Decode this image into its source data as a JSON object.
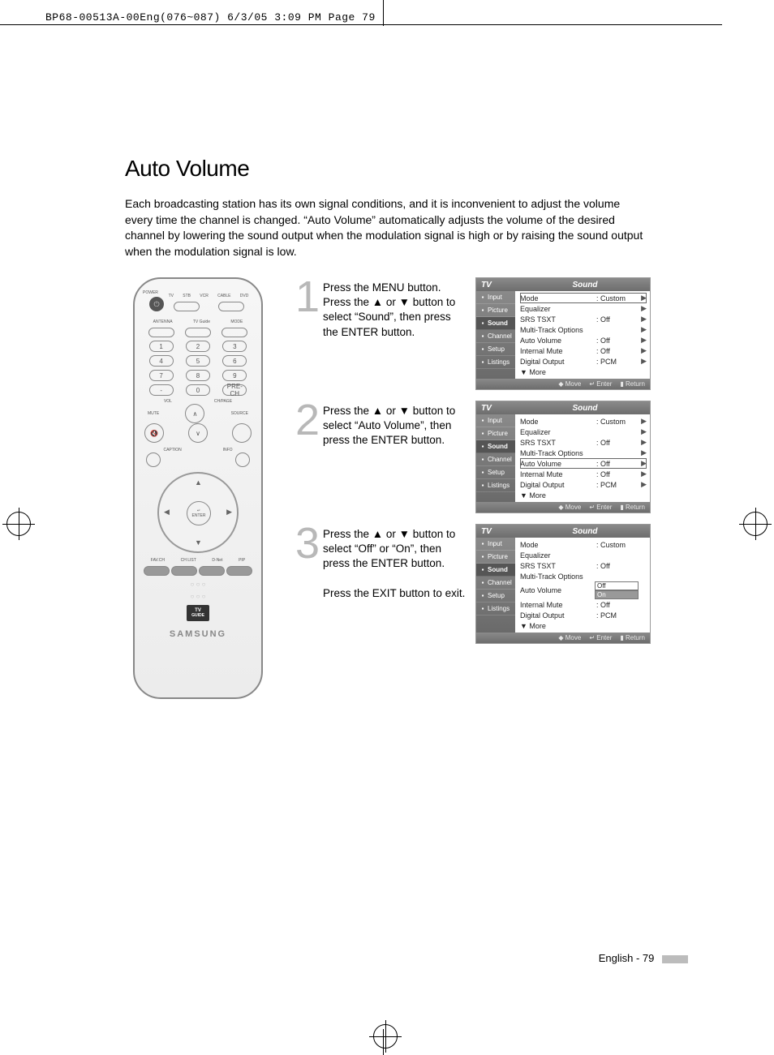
{
  "slug": "BP68-00513A-00Eng(076~087)  6/3/05  3:09 PM  Page 79",
  "title": "Auto Volume",
  "intro": "Each broadcasting station has its own signal conditions, and it is inconvenient to adjust the volume every time the channel is changed. “Auto Volume” automatically adjusts the volume of the desired channel by lowering the sound output when the modulation signal is high or by raising the sound output when the modulation signal is low.",
  "steps": [
    {
      "num": "1",
      "text": "Press the MENU button.\nPress the ▲ or ▼ button to select “Sound”, then press the ENTER button."
    },
    {
      "num": "2",
      "text": "Press the ▲ or ▼ button to select “Auto Volume”, then press the ENTER button."
    },
    {
      "num": "3",
      "text": "Press the ▲ or ▼ button to select “Off” or “On”, then press the ENTER button.\n\nPress the EXIT button to exit."
    }
  ],
  "osd": {
    "header_tv": "TV",
    "header_title": "Sound",
    "side": [
      "Input",
      "Picture",
      "Sound",
      "Channel",
      "Setup",
      "Listings"
    ],
    "side_selected": "Sound",
    "footer": {
      "move": "Move",
      "enter": "Enter",
      "return": "Return"
    },
    "screens": [
      {
        "highlight_row": "Mode",
        "rows": [
          {
            "k": "Mode",
            "v": ": Custom",
            "ar": "▶"
          },
          {
            "k": "Equalizer",
            "v": "",
            "ar": "▶"
          },
          {
            "k": "SRS TSXT",
            "v": ": Off",
            "ar": "▶"
          },
          {
            "k": "Multi-Track Options",
            "v": "",
            "ar": "▶"
          },
          {
            "k": "Auto Volume",
            "v": ": Off",
            "ar": "▶"
          },
          {
            "k": "Internal Mute",
            "v": ": Off",
            "ar": "▶"
          },
          {
            "k": "Digital Output",
            "v": ": PCM",
            "ar": "▶"
          },
          {
            "k": "▼ More",
            "v": "",
            "ar": ""
          }
        ]
      },
      {
        "highlight_row": "Auto Volume",
        "rows": [
          {
            "k": "Mode",
            "v": ": Custom",
            "ar": "▶"
          },
          {
            "k": "Equalizer",
            "v": "",
            "ar": "▶"
          },
          {
            "k": "SRS TSXT",
            "v": ": Off",
            "ar": "▶"
          },
          {
            "k": "Multi-Track Options",
            "v": "",
            "ar": "▶"
          },
          {
            "k": "Auto Volume",
            "v": ": Off",
            "ar": "▶"
          },
          {
            "k": "Internal Mute",
            "v": ": Off",
            "ar": "▶"
          },
          {
            "k": "Digital Output",
            "v": ": PCM",
            "ar": "▶"
          },
          {
            "k": "▼ More",
            "v": "",
            "ar": ""
          }
        ]
      },
      {
        "highlight_row": "",
        "options_row": "Auto Volume",
        "options": [
          "Off",
          "On"
        ],
        "option_selected": "On",
        "rows": [
          {
            "k": "Mode",
            "v": ": Custom",
            "ar": ""
          },
          {
            "k": "Equalizer",
            "v": "",
            "ar": ""
          },
          {
            "k": "SRS TSXT",
            "v": ": Off",
            "ar": ""
          },
          {
            "k": "Multi-Track Options",
            "v": "",
            "ar": ""
          },
          {
            "k": "Auto Volume",
            "v": "",
            "ar": ""
          },
          {
            "k": "Internal Mute",
            "v": ": Off",
            "ar": ""
          },
          {
            "k": "Digital Output",
            "v": ": PCM",
            "ar": ""
          },
          {
            "k": "▼ More",
            "v": "",
            "ar": ""
          }
        ]
      }
    ]
  },
  "remote": {
    "power_label": "POWER",
    "top_labels": [
      "TV",
      "STB",
      "VCR",
      "CABLE",
      "DVD"
    ],
    "row2_labels": [
      "ANTENNA",
      "TV Guide",
      "MODE"
    ],
    "numpad": [
      [
        "1",
        "2",
        "3"
      ],
      [
        "4",
        "5",
        "6"
      ],
      [
        "7",
        "8",
        "9"
      ],
      [
        "-",
        "0",
        "PRE-CH"
      ]
    ],
    "vol": "VOL",
    "ch": "CH/PAGE",
    "mute": "MUTE",
    "source": "SOURCE",
    "enter": "ENTER",
    "bottom_labels": [
      "FAV.CH",
      "CH LIST",
      "D-Net",
      "PIP"
    ],
    "brand": "SAMSUNG",
    "guide": "TV GUIDE"
  },
  "footer": "English - 79",
  "colors": {
    "step_num": "#b8b8b8",
    "osd_header_bg": "#7a7a7a",
    "osd_side_bg": "#7a7a7a",
    "remote_border": "#888888"
  }
}
